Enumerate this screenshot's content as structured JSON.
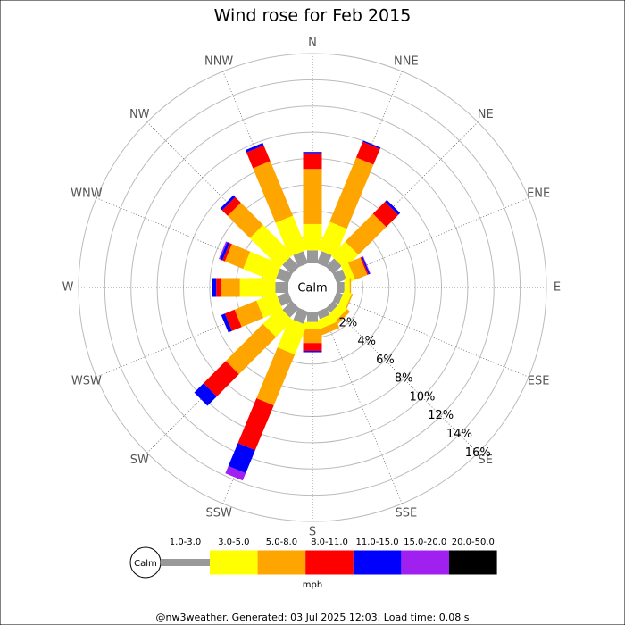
{
  "chart_data": {
    "type": "windrose",
    "title": "Wind rose for Feb 2015",
    "directions": [
      "N",
      "NNE",
      "NE",
      "ENE",
      "E",
      "ESE",
      "SE",
      "SSE",
      "S",
      "SSW",
      "SW",
      "WSW",
      "W",
      "WNW",
      "NW",
      "NNW"
    ],
    "calm_label": "Calm",
    "rlim": [
      0,
      16
    ],
    "rticks": [
      {
        "value": 2,
        "label": "2%"
      },
      {
        "value": 4,
        "label": "4%"
      },
      {
        "value": 6,
        "label": "6%"
      },
      {
        "value": 8,
        "label": "8%"
      },
      {
        "value": 10,
        "label": "10%"
      },
      {
        "value": 12,
        "label": "12%"
      },
      {
        "value": 14,
        "label": "14%"
      },
      {
        "value": 16,
        "label": "16%"
      }
    ],
    "series": [
      {
        "name": "1.0-3.0",
        "color": "#999999",
        "values": [
          1.0,
          1.0,
          0.9,
          0.8,
          0.6,
          0.5,
          0.5,
          0.6,
          0.8,
          1.0,
          1.0,
          0.9,
          1.0,
          1.0,
          1.0,
          1.0
        ]
      },
      {
        "name": "3.0-5.0",
        "color": "#ffff00",
        "values": [
          2.0,
          2.3,
          1.5,
          0.6,
          0.4,
          0.6,
          0.7,
          0.7,
          0.5,
          2.4,
          1.8,
          1.6,
          2.7,
          2.6,
          3.2,
          2.8
        ]
      },
      {
        "name": "5.0-8.0",
        "color": "#ffa500",
        "values": [
          4.2,
          5.3,
          3.0,
          1.0,
          0.1,
          0.1,
          0.3,
          0.5,
          1.1,
          4.2,
          4.0,
          1.8,
          1.4,
          1.5,
          2.4,
          4.5
        ]
      },
      {
        "name": "8.0-11.0",
        "color": "#ff0000",
        "values": [
          1.2,
          1.3,
          1.3,
          0.1,
          0,
          0,
          0,
          0,
          0.6,
          3.7,
          2.4,
          0.8,
          0.4,
          0.2,
          0.6,
          1.3
        ]
      },
      {
        "name": "11.0-15.0",
        "color": "#0000ff",
        "values": [
          0.1,
          0.1,
          0.2,
          0.1,
          0,
          0,
          0,
          0,
          0.1,
          1.9,
          1.0,
          0.3,
          0.3,
          0.2,
          0.2,
          0.2
        ]
      },
      {
        "name": "15.0-20.0",
        "color": "#a020f0",
        "values": [
          0,
          0,
          0,
          0.05,
          0,
          0,
          0,
          0,
          0,
          0.6,
          0,
          0,
          0,
          0.1,
          0,
          0
        ]
      },
      {
        "name": "20.0-50.0",
        "color": "#000000",
        "values": [
          0,
          0,
          0,
          0,
          0,
          0,
          0,
          0,
          0,
          0,
          0,
          0,
          0,
          0,
          0,
          0
        ]
      }
    ],
    "unit": "mph",
    "footer": "@nw3weather. Generated: 03 Jul 2025 12:03; Load time: 0.08 s"
  }
}
